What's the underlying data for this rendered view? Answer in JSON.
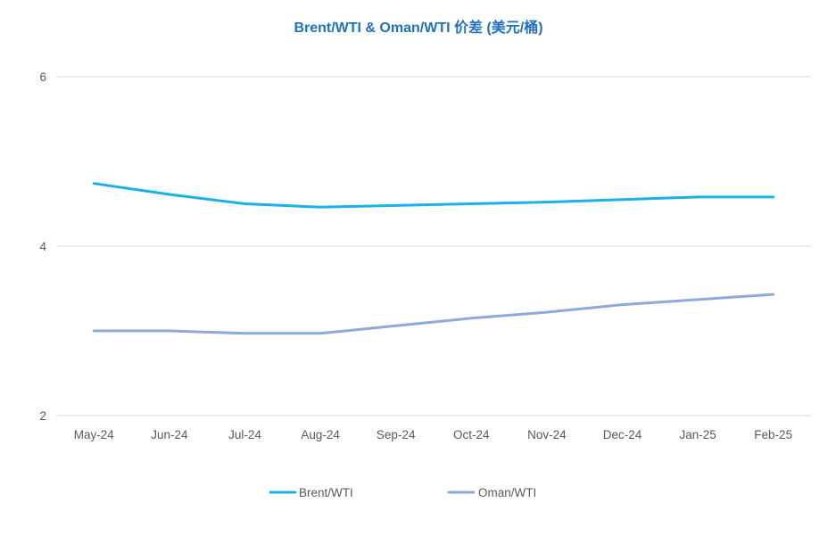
{
  "chart_data": {
    "type": "line",
    "title": "Brent/WTI & Oman/WTI 价差 (美元/桶)",
    "categories": [
      "May-24",
      "Jun-24",
      "Jul-24",
      "Aug-24",
      "Sep-24",
      "Oct-24",
      "Nov-24",
      "Dec-24",
      "Jan-25",
      "Feb-25"
    ],
    "series": [
      {
        "name": "Brent/WTI",
        "color": "#1AB0E9",
        "values": [
          4.74,
          4.61,
          4.5,
          4.46,
          4.48,
          4.5,
          4.52,
          4.55,
          4.58,
          4.58
        ]
      },
      {
        "name": "Oman/WTI",
        "color": "#8EA9DB",
        "values": [
          3.0,
          3.0,
          2.97,
          2.97,
          3.06,
          3.15,
          3.22,
          3.31,
          3.37,
          3.43
        ]
      }
    ],
    "ylim": [
      2,
      6
    ],
    "yticks": [
      2,
      4,
      6
    ],
    "grid": true,
    "legend": "bottom"
  },
  "colors": {
    "title": "#1F70C1",
    "grid": "#D9D9D9",
    "tick_text": "#595959"
  }
}
